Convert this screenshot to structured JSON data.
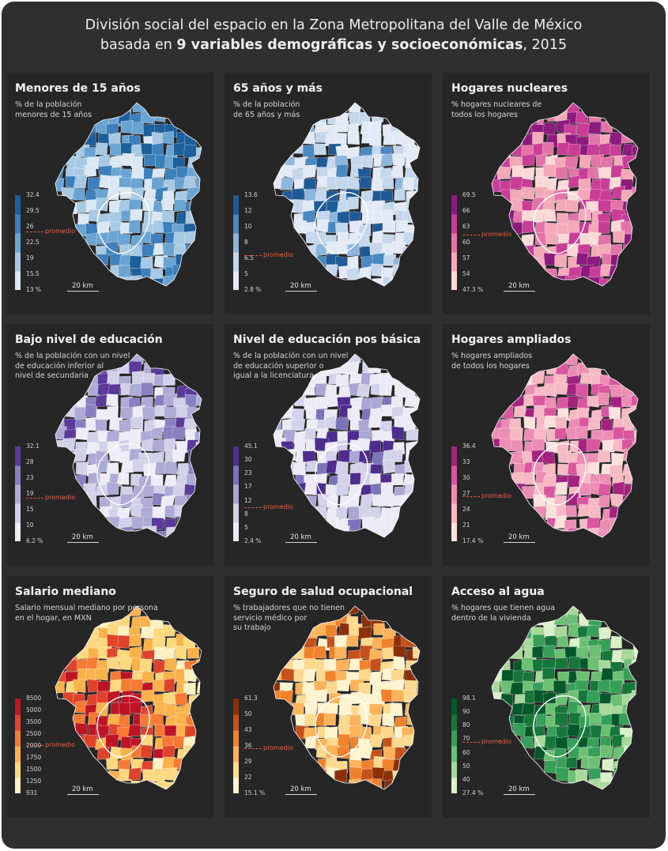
{
  "title": {
    "line1": "División social del espacio en la Zona Metropolitana del Valle de México",
    "line2_prefix": "basada en ",
    "line2_bold": "9 variables demográficas y socioeconómicas",
    "line2_suffix": ", 2015"
  },
  "average_label": "promedio",
  "scale_label": "20 km",
  "panels": [
    {
      "title": "Menores de 15 años",
      "subtitle": "% de la población\nmenores de 15 años",
      "ticks": [
        "32.4",
        "29.5",
        "26",
        "22.5",
        "19",
        "15.5",
        "13 %"
      ],
      "average_value": 25,
      "colors": [
        "#dbe8f4",
        "#a7c9e3",
        "#6aa4d2",
        "#3c80bd",
        "#1c5f9b"
      ],
      "weights": [
        0.1,
        0.22,
        0.33,
        0.24,
        0.11
      ],
      "center_bias": -1,
      "map_colors_flag": "blue"
    },
    {
      "title": "65 años y más",
      "subtitle": "% de la población\nde 65 años y más",
      "ticks": [
        "13.6",
        "12",
        "10",
        "8",
        "6.5",
        "5",
        "2.8 %"
      ],
      "average_value": 6.8,
      "colors": [
        "#e3eaf5",
        "#c5d7ec",
        "#8db6dc",
        "#4a88c2",
        "#1f5a96"
      ],
      "weights": [
        0.45,
        0.3,
        0.14,
        0.07,
        0.04
      ],
      "center_bias": 1,
      "map_colors_flag": "blue"
    },
    {
      "title": "Hogares nucleares",
      "subtitle": "% hogares nucleares de\ntodos los hogares",
      "ticks": [
        "69.5",
        "66",
        "63",
        "60",
        "57",
        "54",
        "47.3 %"
      ],
      "average_value": 61.5,
      "colors": [
        "#fbd9d6",
        "#f4a9b9",
        "#e374a8",
        "#c93d97",
        "#8d1a7d"
      ],
      "weights": [
        0.08,
        0.28,
        0.22,
        0.25,
        0.17
      ],
      "center_bias": -1,
      "map_colors_flag": "pink"
    },
    {
      "title": "Bajo nivel de educación",
      "subtitle": "% de la población con un nivel\nde educación inferior al\nnivel de secundaria",
      "ticks": [
        "32.1",
        "28",
        "23",
        "19",
        "15",
        "10",
        "6.2 %"
      ],
      "average_value": 18,
      "colors": [
        "#eeecf6",
        "#d2d1e9",
        "#aeabd6",
        "#8a7fc0",
        "#5b3a9c"
      ],
      "weights": [
        0.15,
        0.32,
        0.3,
        0.16,
        0.07
      ],
      "center_bias": -1,
      "map_colors_flag": "purple"
    },
    {
      "title": "Nivel de educación pos básica",
      "subtitle": "% de la población con un nivel\nde educación superior o\nigual a la licenciatura",
      "ticks": [
        "45.1",
        "30",
        "23",
        "17",
        "12",
        "8",
        "5",
        "2.4 %"
      ],
      "average_value": 10,
      "colors": [
        "#ecebf5",
        "#d3d2ea",
        "#aaa7d4",
        "#7c74bb",
        "#4e2d8f"
      ],
      "weights": [
        0.48,
        0.27,
        0.12,
        0.08,
        0.05
      ],
      "center_bias": 1,
      "map_colors_flag": "purple"
    },
    {
      "title": "Hogares ampliados",
      "subtitle": "% hogares ampliados\nde todos los hogares",
      "ticks": [
        "36.4",
        "33",
        "30",
        "27",
        "24",
        "21",
        "17.4 %"
      ],
      "average_value": 26.5,
      "colors": [
        "#fde1dc",
        "#f7b9c4",
        "#ec8db4",
        "#da57a0",
        "#a3237f"
      ],
      "weights": [
        0.1,
        0.33,
        0.3,
        0.18,
        0.09
      ],
      "center_bias": 0,
      "map_colors_flag": "pink"
    },
    {
      "title": "Salario mediano",
      "subtitle": "Salario mensual mediano por persona\nen el hogar, en MXN",
      "ticks": [
        "8500",
        "5000",
        "3500",
        "2500",
        "2000",
        "1750",
        "1500",
        "1250",
        "931"
      ],
      "average_value": 2050,
      "colors": [
        "#fdf2c3",
        "#fdd87e",
        "#fbb24b",
        "#f57a33",
        "#e0432b",
        "#bf1426"
      ],
      "weights": [
        0.1,
        0.24,
        0.3,
        0.18,
        0.12,
        0.06
      ],
      "center_bias": 1,
      "map_colors_flag": "orange"
    },
    {
      "title": "Seguro de salud ocupacional",
      "subtitle": "% trabajadores que no tienen\nservicio médico por\nsu trabajo",
      "ticks": [
        "61.3",
        "50",
        "43",
        "36",
        "29",
        "22",
        "15.1 %"
      ],
      "average_value": 35,
      "colors": [
        "#fff4cf",
        "#fed98e",
        "#fdb35a",
        "#f0822c",
        "#c5521a",
        "#8c3009"
      ],
      "weights": [
        0.12,
        0.27,
        0.24,
        0.18,
        0.12,
        0.07
      ],
      "center_bias": -1,
      "map_colors_flag": "orange"
    },
    {
      "title": "Acceso al agua",
      "subtitle": "% hogares que tienen agua\ndentro de la vivienda",
      "ticks": [
        "98.1",
        "90",
        "80",
        "70",
        "60",
        "50",
        "40",
        "27.4 %"
      ],
      "average_value": 68,
      "colors": [
        "#d9f0c9",
        "#a6d99a",
        "#6cc073",
        "#37a058",
        "#15773a",
        "#04582a"
      ],
      "weights": [
        0.08,
        0.18,
        0.26,
        0.24,
        0.15,
        0.09
      ],
      "center_bias": 1,
      "map_colors_flag": "green"
    }
  ]
}
